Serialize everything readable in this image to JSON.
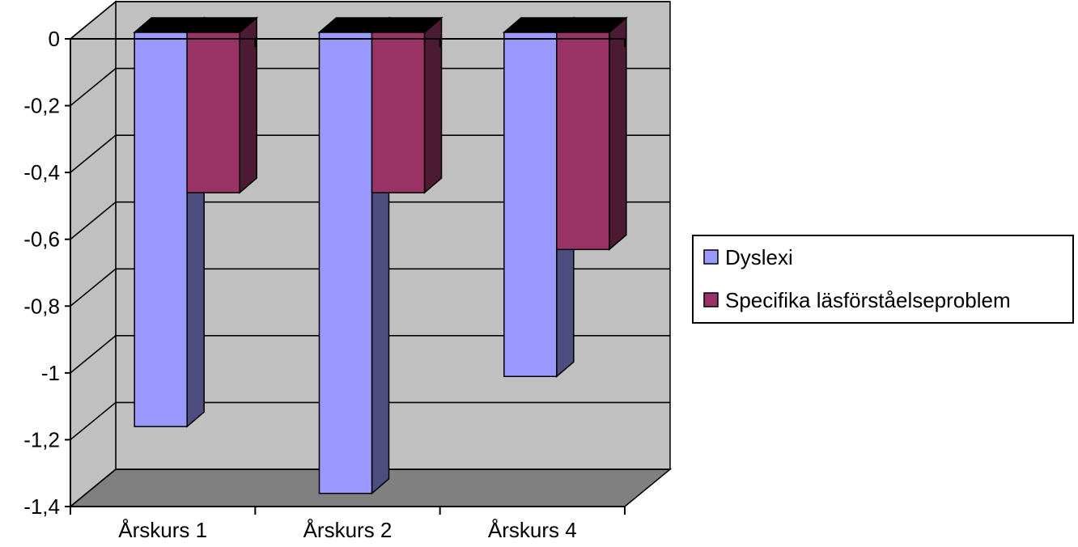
{
  "chart_data": {
    "type": "bar",
    "categories": [
      "Årskurs 1",
      "Årskurs 2",
      "Årskurs 4"
    ],
    "series": [
      {
        "name": "Dyslexi",
        "values": [
          -1.18,
          -1.38,
          -1.03
        ],
        "color": "#9999ff"
      },
      {
        "name": "Specifika läsförståelseproblem",
        "values": [
          -0.48,
          -0.48,
          -0.65
        ],
        "color": "#993366"
      }
    ],
    "y_ticks": [
      "0",
      "-0,2",
      "-0,4",
      "-0,6",
      "-0,8",
      "-1",
      "-1,2",
      "-1,4"
    ],
    "ylim": [
      -1.4,
      0
    ],
    "grid": true,
    "legend_position": "right",
    "title": "",
    "xlabel": "",
    "ylabel": ""
  }
}
